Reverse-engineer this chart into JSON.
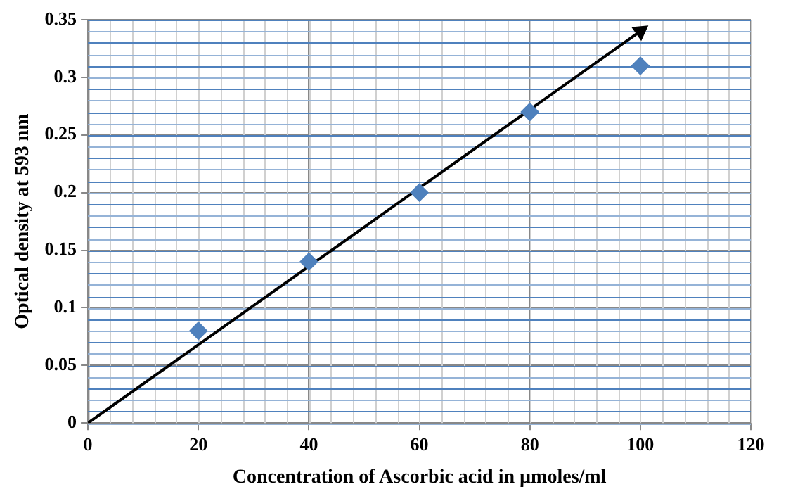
{
  "chart_data": {
    "type": "scatter",
    "xlabel": "Concentration of Ascorbic acid in µmoles/ml",
    "ylabel": "Optical density at 593 nm",
    "x": [
      20,
      40,
      60,
      80,
      100
    ],
    "series": [
      {
        "color": "#4f81bd",
        "values": [
          0.08,
          0.14,
          0.2,
          0.27,
          0.31
        ],
        "marker": "diamond"
      },
      {
        "type": "line",
        "x": [
          0,
          100
        ],
        "values": [
          0,
          0.34
        ],
        "color": "#000000"
      }
    ],
    "xlim": [
      0,
      120
    ],
    "xticks": [
      0,
      20,
      40,
      60,
      80,
      100,
      120
    ],
    "ylim": [
      0,
      0.35
    ],
    "yticks": [
      0,
      0.05,
      0.1,
      0.15,
      0.2,
      0.25,
      0.3,
      0.35
    ],
    "grid": true,
    "legend": false
  }
}
